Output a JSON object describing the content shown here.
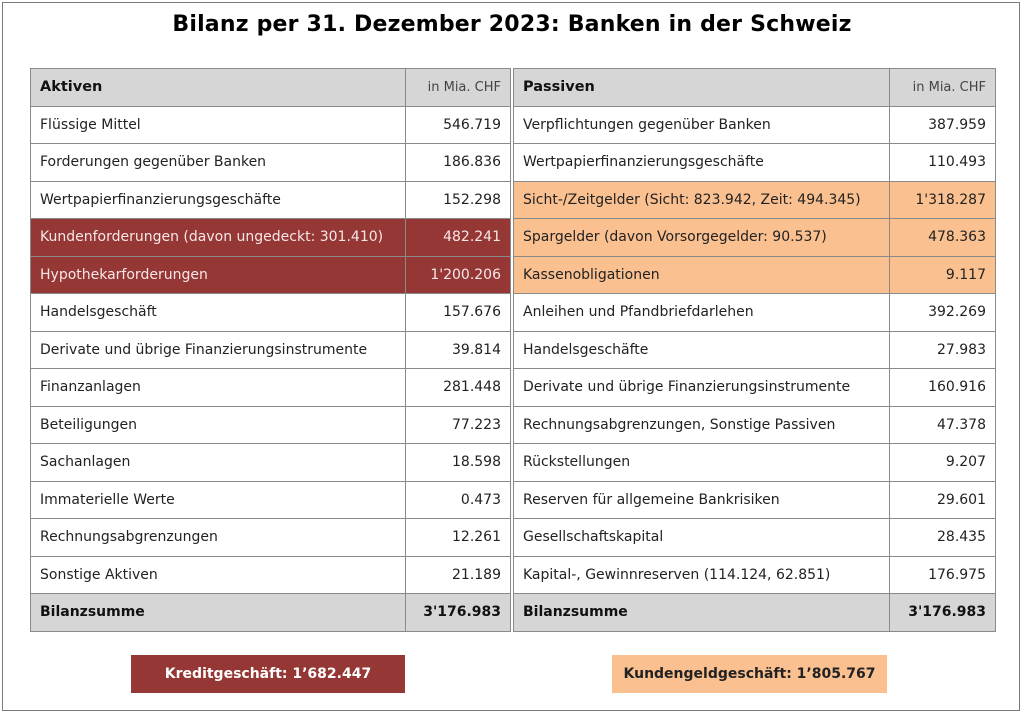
{
  "title": "Bilanz per 31. Dezember 2023: Banken in der Schweiz",
  "colors": {
    "credit": "#953735",
    "deposits": "#fac090",
    "header": "#d6d6d6"
  },
  "aktiven": {
    "header": "Aktiven",
    "unit": "in Mia. CHF",
    "rows": [
      {
        "label": "Flüssige Mittel",
        "value": "546.719",
        "highlight": ""
      },
      {
        "label": "Forderungen gegenüber Banken",
        "value": "186.836",
        "highlight": ""
      },
      {
        "label": "Wertpapierfinanzierungsgeschäfte",
        "value": "152.298",
        "highlight": ""
      },
      {
        "label": "Kundenforderungen (davon ungedeckt: 301.410)",
        "value": "482.241",
        "highlight": "red"
      },
      {
        "label": "Hypothekarforderungen",
        "value": "1'200.206",
        "highlight": "red"
      },
      {
        "label": "Handelsgeschäft",
        "value": "157.676",
        "highlight": ""
      },
      {
        "label": "Derivate und übrige Finanzierungsinstrumente",
        "value": "39.814",
        "highlight": ""
      },
      {
        "label": "Finanzanlagen",
        "value": "281.448",
        "highlight": ""
      },
      {
        "label": "Beteiligungen",
        "value": "77.223",
        "highlight": ""
      },
      {
        "label": "Sachanlagen",
        "value": "18.598",
        "highlight": ""
      },
      {
        "label": "Immaterielle Werte",
        "value": "0.473",
        "highlight": ""
      },
      {
        "label": "Rechnungsabgrenzungen",
        "value": "12.261",
        "highlight": ""
      },
      {
        "label": "Sonstige Aktiven",
        "value": "21.189",
        "highlight": ""
      }
    ],
    "total_label": "Bilanzsumme",
    "total_value": "3'176.983"
  },
  "passiven": {
    "header": "Passiven",
    "unit": "in Mia. CHF",
    "rows": [
      {
        "label": "Verpflichtungen gegenüber Banken",
        "value": "387.959",
        "highlight": ""
      },
      {
        "label": "Wertpapierfinanzierungsgeschäfte",
        "value": "110.493",
        "highlight": ""
      },
      {
        "label": "Sicht-/Zeitgelder (Sicht: 823.942, Zeit: 494.345)",
        "value": "1'318.287",
        "highlight": "peach"
      },
      {
        "label": "Spargelder (davon Vorsorgegelder: 90.537)",
        "value": "478.363",
        "highlight": "peach"
      },
      {
        "label": "Kassenobligationen",
        "value": "9.117",
        "highlight": "peach"
      },
      {
        "label": "Anleihen und Pfandbriefdarlehen",
        "value": "392.269",
        "highlight": ""
      },
      {
        "label": "Handelsgeschäfte",
        "value": "27.983",
        "highlight": ""
      },
      {
        "label": "Derivate und übrige Finanzierungsinstrumente",
        "value": "160.916",
        "highlight": ""
      },
      {
        "label": "Rechnungsabgrenzungen, Sonstige Passiven",
        "value": "47.378",
        "highlight": ""
      },
      {
        "label": "Rückstellungen",
        "value": "9.207",
        "highlight": ""
      },
      {
        "label": "Reserven für allgemeine Bankrisiken",
        "value": "29.601",
        "highlight": ""
      },
      {
        "label": "Gesellschaftskapital",
        "value": "28.435",
        "highlight": ""
      },
      {
        "label": "Kapital-, Gewinnreserven (114.124, 62.851)",
        "value": "176.975",
        "highlight": ""
      }
    ],
    "total_label": "Bilanzsumme",
    "total_value": "3'176.983"
  },
  "summary": {
    "credit": "Kreditgeschäft: 1’682.447",
    "deposits": "Kundengeldgeschäft: 1’805.767"
  }
}
